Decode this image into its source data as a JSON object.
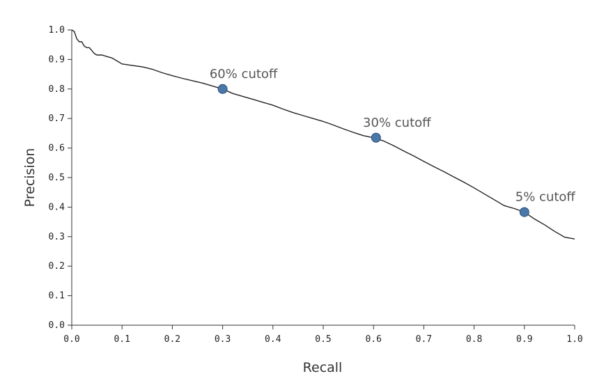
{
  "chart_data": {
    "type": "line",
    "title": "",
    "xlabel": "Recall",
    "ylabel": "Precision",
    "xlim": [
      0,
      1
    ],
    "ylim": [
      0,
      1
    ],
    "x_ticks": [
      "0.0",
      "0.1",
      "0.2",
      "0.3",
      "0.4",
      "0.5",
      "0.6",
      "0.7",
      "0.8",
      "0.9",
      "1.0"
    ],
    "y_ticks": [
      "0.0",
      "0.1",
      "0.2",
      "0.3",
      "0.4",
      "0.5",
      "0.6",
      "0.7",
      "0.8",
      "0.9",
      "1.0"
    ],
    "grid": false,
    "series": [
      {
        "x": [
          0.0,
          0.005,
          0.01,
          0.015,
          0.02,
          0.025,
          0.03,
          0.035,
          0.04,
          0.045,
          0.05,
          0.06,
          0.07,
          0.08,
          0.09,
          0.1,
          0.12,
          0.14,
          0.16,
          0.18,
          0.2,
          0.22,
          0.24,
          0.26,
          0.28,
          0.3,
          0.32,
          0.34,
          0.36,
          0.38,
          0.4,
          0.42,
          0.44,
          0.46,
          0.48,
          0.5,
          0.52,
          0.54,
          0.56,
          0.58,
          0.6,
          0.62,
          0.64,
          0.66,
          0.68,
          0.7,
          0.72,
          0.74,
          0.76,
          0.78,
          0.8,
          0.82,
          0.84,
          0.86,
          0.88,
          0.9,
          0.92,
          0.94,
          0.96,
          0.98,
          1.0
        ],
        "y": [
          1.0,
          0.995,
          0.97,
          0.96,
          0.96,
          0.945,
          0.94,
          0.94,
          0.93,
          0.92,
          0.915,
          0.915,
          0.91,
          0.905,
          0.895,
          0.885,
          0.88,
          0.875,
          0.867,
          0.855,
          0.845,
          0.836,
          0.828,
          0.82,
          0.81,
          0.8,
          0.785,
          0.775,
          0.765,
          0.755,
          0.745,
          0.732,
          0.72,
          0.71,
          0.7,
          0.69,
          0.678,
          0.665,
          0.653,
          0.642,
          0.635,
          0.624,
          0.608,
          0.59,
          0.573,
          0.555,
          0.537,
          0.52,
          0.502,
          0.484,
          0.465,
          0.445,
          0.425,
          0.405,
          0.395,
          0.383,
          0.36,
          0.34,
          0.318,
          0.298,
          0.292
        ]
      }
    ],
    "annotations": [
      {
        "label": "60% cutoff",
        "x": 0.3,
        "y": 0.8
      },
      {
        "label": "30% cutoff",
        "x": 0.605,
        "y": 0.635
      },
      {
        "label": "5% cutoff",
        "x": 0.9,
        "y": 0.383
      }
    ],
    "colors": {
      "curve": "#222222",
      "marker": "#4a78a8",
      "axis": "#333333",
      "annotation_text": "#555555"
    }
  }
}
